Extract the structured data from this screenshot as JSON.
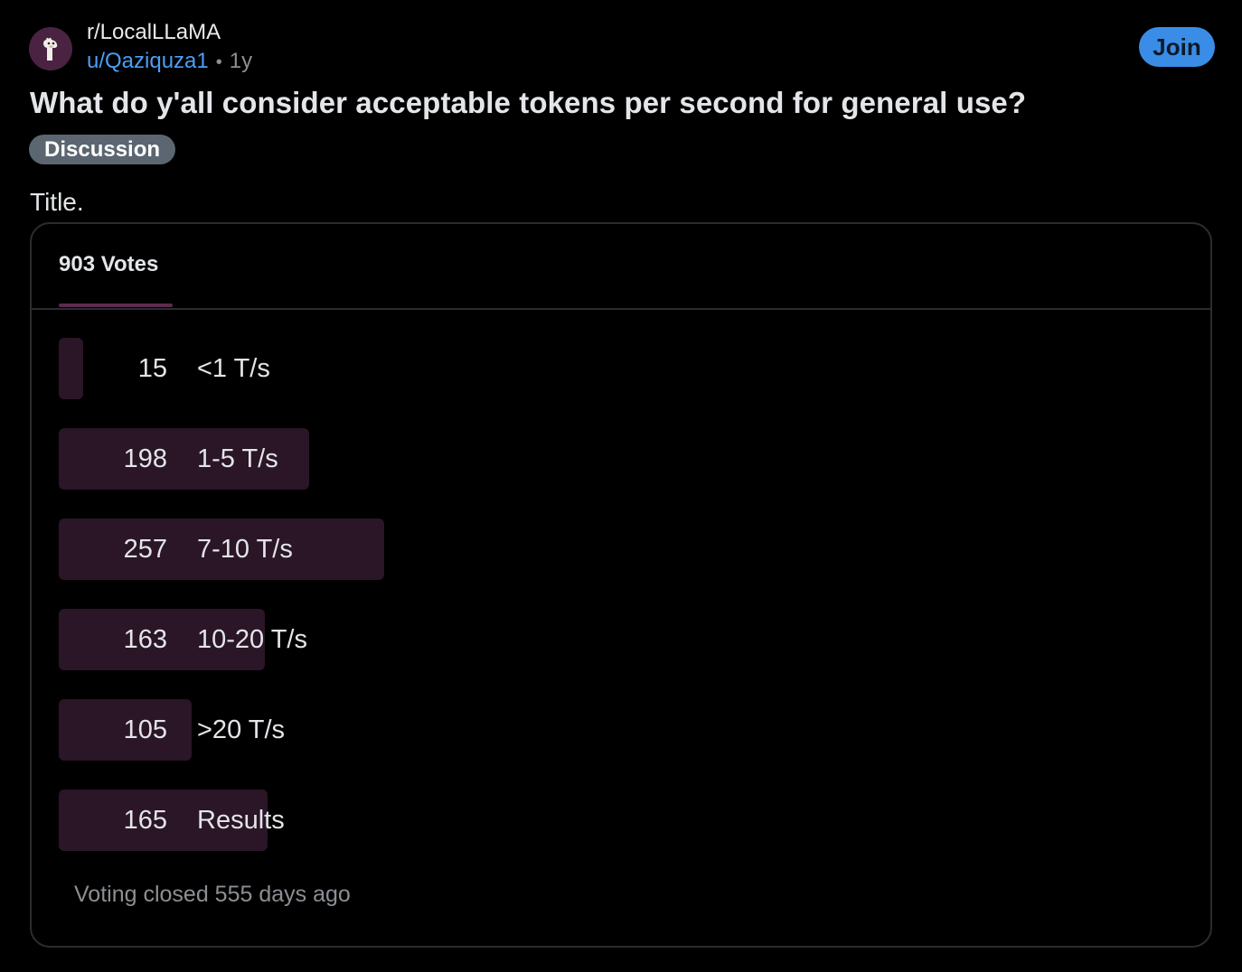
{
  "post": {
    "subreddit": "r/LocalLLaMA",
    "username": "u/Qaziquza1",
    "separator": "•",
    "age": "1y",
    "join_label": "Join",
    "title": "What do y'all consider acceptable tokens per second for general use?",
    "flair": "Discussion",
    "body": "Title.",
    "subreddit_icon": "llama-avatar-icon",
    "colors": {
      "background": "#000000",
      "join_button": "#3a8de6",
      "username_link": "#4a9ff5",
      "flair_bg": "#5b6670",
      "poll_bar": "#2a1627",
      "tab_underline": "#5c2a4e"
    }
  },
  "poll": {
    "votes_label": "903 Votes",
    "total_votes": 903,
    "options": [
      {
        "count": "15",
        "label": "<1 T/s",
        "votes": 15
      },
      {
        "count": "198",
        "label": "1-5 T/s",
        "votes": 198
      },
      {
        "count": "257",
        "label": "7-10 T/s",
        "votes": 257
      },
      {
        "count": "163",
        "label": "10-20 T/s",
        "votes": 163
      },
      {
        "count": "105",
        "label": ">20 T/s",
        "votes": 105
      },
      {
        "count": "165",
        "label": "Results",
        "votes": 165
      }
    ],
    "status": "Voting closed 555 days ago"
  }
}
